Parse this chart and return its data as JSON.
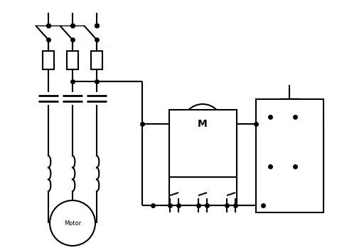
{
  "bg_color": "#ffffff",
  "line_color": "#000000",
  "line_width": 1.5,
  "dot_size": 4,
  "figsize": [
    4.74,
    3.53
  ],
  "dpi": 100
}
